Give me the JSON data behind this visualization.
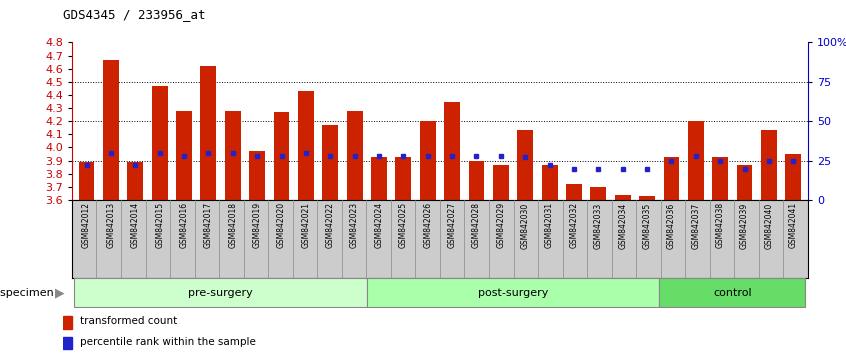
{
  "title": "GDS4345 / 233956_at",
  "samples": [
    "GSM842012",
    "GSM842013",
    "GSM842014",
    "GSM842015",
    "GSM842016",
    "GSM842017",
    "GSM842018",
    "GSM842019",
    "GSM842020",
    "GSM842021",
    "GSM842022",
    "GSM842023",
    "GSM842024",
    "GSM842025",
    "GSM842026",
    "GSM842027",
    "GSM842028",
    "GSM842029",
    "GSM842030",
    "GSM842031",
    "GSM842032",
    "GSM842033",
    "GSM842034",
    "GSM842035",
    "GSM842036",
    "GSM842037",
    "GSM842038",
    "GSM842039",
    "GSM842040",
    "GSM842041"
  ],
  "red_values": [
    3.89,
    4.67,
    3.89,
    4.47,
    4.28,
    4.62,
    4.28,
    3.97,
    4.27,
    4.43,
    4.17,
    4.28,
    3.93,
    3.93,
    4.2,
    4.35,
    3.9,
    3.87,
    4.13,
    3.87,
    3.72,
    3.7,
    3.64,
    3.63,
    3.93,
    4.2,
    3.93,
    3.87,
    4.13,
    3.95
  ],
  "blue_pct": [
    22,
    30,
    22,
    30,
    28,
    30,
    30,
    28,
    28,
    30,
    28,
    28,
    28,
    28,
    28,
    28,
    28,
    28,
    27,
    22,
    20,
    20,
    20,
    20,
    25,
    28,
    25,
    20,
    25,
    25
  ],
  "groups": [
    {
      "label": "pre-surgery",
      "start": 0,
      "end": 11,
      "color": "#CCFFCC"
    },
    {
      "label": "post-surgery",
      "start": 12,
      "end": 23,
      "color": "#AAFFAA"
    },
    {
      "label": "control",
      "start": 24,
      "end": 29,
      "color": "#66DD66"
    }
  ],
  "ymin": 3.6,
  "ymax": 4.8,
  "yticks_left": [
    3.6,
    3.7,
    3.8,
    3.9,
    4.0,
    4.1,
    4.2,
    4.3,
    4.4,
    4.5,
    4.6,
    4.7,
    4.8
  ],
  "yticks_right": [
    0,
    25,
    50,
    75,
    100
  ],
  "ygrid": [
    3.9,
    4.2,
    4.5
  ],
  "bar_color": "#CC2200",
  "blue_color": "#2222CC",
  "axis_left_color": "#CC0000",
  "axis_right_color": "#0000CC",
  "xtick_bg": "#CCCCCC",
  "group_border": "#888888"
}
